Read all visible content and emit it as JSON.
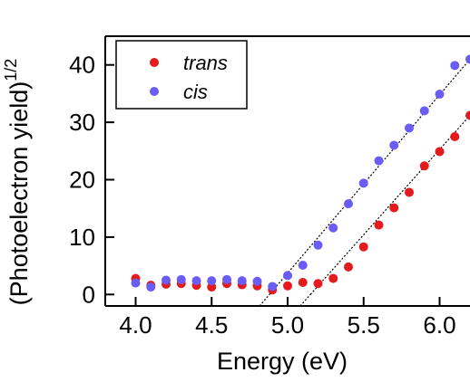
{
  "chart_data": {
    "type": "scatter",
    "title": "",
    "xlabel": "Energy (eV)",
    "ylabel": "(Photoelectron yield)",
    "ylabel_superscript": "1/2",
    "xlim": [
      3.8,
      6.2
    ],
    "ylim": [
      -2,
      45
    ],
    "x_ticks": [
      4.0,
      4.5,
      5.0,
      5.5,
      6.0
    ],
    "x_tick_labels": [
      "4.0",
      "4.5",
      "5.0",
      "5.5",
      "6.0"
    ],
    "y_ticks": [
      0,
      10,
      20,
      30,
      40
    ],
    "y_tick_labels": [
      "0",
      "10",
      "20",
      "30",
      "40"
    ],
    "grid": false,
    "legend_position": "top-left",
    "series": [
      {
        "name": "trans",
        "color": "#e41a1c",
        "marker": "circle",
        "x": [
          4.0,
          4.1,
          4.2,
          4.3,
          4.4,
          4.5,
          4.6,
          4.7,
          4.8,
          4.9,
          5.0,
          5.1,
          5.2,
          5.3,
          5.4,
          5.5,
          5.6,
          5.7,
          5.8,
          5.9,
          6.0,
          6.1,
          6.2
        ],
        "y": [
          2.8,
          1.6,
          1.8,
          1.9,
          1.6,
          1.3,
          1.9,
          1.7,
          1.5,
          0.8,
          1.5,
          2.1,
          1.9,
          2.8,
          4.8,
          8.3,
          12.1,
          15.1,
          17.8,
          22.4,
          24.9,
          27.5,
          31.2
        ]
      },
      {
        "name": "cis",
        "color": "#6a5cf5",
        "marker": "circle",
        "x": [
          4.0,
          4.1,
          4.2,
          4.3,
          4.4,
          4.5,
          4.6,
          4.7,
          4.8,
          4.9,
          5.0,
          5.1,
          5.2,
          5.3,
          5.4,
          5.5,
          5.6,
          5.7,
          5.8,
          5.9,
          6.0,
          6.1,
          6.2
        ],
        "y": [
          2.0,
          1.3,
          2.5,
          2.6,
          2.4,
          2.4,
          2.6,
          2.4,
          2.3,
          1.4,
          3.3,
          5.1,
          8.6,
          11.6,
          15.8,
          19.4,
          23.3,
          26.0,
          29.0,
          32.0,
          34.9,
          39.9,
          41.0
        ]
      }
    ],
    "fit_lines": [
      {
        "series": "trans",
        "x": [
          5.15,
          6.2
        ],
        "y": [
          0,
          31.2
        ],
        "style": "dotted"
      },
      {
        "series": "cis",
        "x": [
          4.88,
          6.2
        ],
        "y": [
          0,
          41.0
        ],
        "style": "dotted"
      }
    ]
  }
}
